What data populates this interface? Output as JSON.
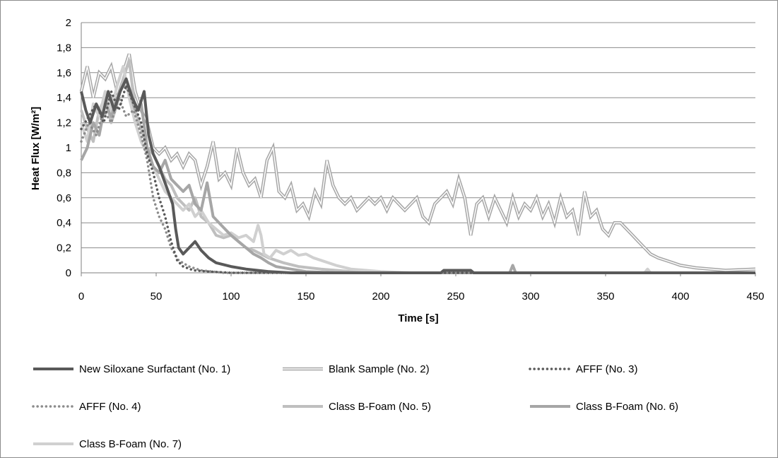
{
  "chart_data": {
    "type": "line",
    "title": "",
    "xlabel": "Time [s]",
    "ylabel": "Heat Flux [W/m²]",
    "xlim": [
      0,
      450
    ],
    "ylim": [
      0,
      2
    ],
    "x_ticks": [
      0,
      50,
      100,
      150,
      200,
      250,
      300,
      350,
      400,
      450
    ],
    "y_ticks": [
      0,
      0.2,
      0.4,
      0.6,
      0.8,
      1,
      1.2,
      1.4,
      1.6,
      1.8,
      2
    ],
    "y_tick_labels": [
      "0",
      "0,2",
      "0,4",
      "0,6",
      "0,8",
      "1",
      "1,2",
      "1,4",
      "1,6",
      "1,8",
      "2"
    ],
    "grid": "horizontal",
    "legend_position": "bottom",
    "series": [
      {
        "name": "New Siloxane Surfactant (No. 1)",
        "style": "solid-thick",
        "color": "#595959",
        "points": [
          [
            0,
            1.45
          ],
          [
            3,
            1.3
          ],
          [
            6,
            1.2
          ],
          [
            10,
            1.35
          ],
          [
            14,
            1.25
          ],
          [
            18,
            1.45
          ],
          [
            22,
            1.3
          ],
          [
            26,
            1.45
          ],
          [
            30,
            1.55
          ],
          [
            34,
            1.4
          ],
          [
            38,
            1.3
          ],
          [
            42,
            1.45
          ],
          [
            45,
            1.1
          ],
          [
            48,
            0.95
          ],
          [
            52,
            0.85
          ],
          [
            55,
            0.75
          ],
          [
            58,
            0.65
          ],
          [
            61,
            0.55
          ],
          [
            63,
            0.35
          ],
          [
            65,
            0.2
          ],
          [
            68,
            0.15
          ],
          [
            72,
            0.2
          ],
          [
            76,
            0.25
          ],
          [
            80,
            0.18
          ],
          [
            85,
            0.12
          ],
          [
            90,
            0.08
          ],
          [
            100,
            0.05
          ],
          [
            110,
            0.03
          ],
          [
            125,
            0.01
          ],
          [
            140,
            0.0
          ],
          [
            240,
            0.0
          ],
          [
            242,
            0.02
          ],
          [
            260,
            0.02
          ],
          [
            262,
            0.0
          ],
          [
            450,
            0.0
          ]
        ]
      },
      {
        "name": "Blank Sample (No. 2)",
        "style": "double",
        "color": "#a6a6a6",
        "points": [
          [
            0,
            1.45
          ],
          [
            4,
            1.65
          ],
          [
            8,
            1.4
          ],
          [
            12,
            1.6
          ],
          [
            16,
            1.55
          ],
          [
            20,
            1.65
          ],
          [
            24,
            1.45
          ],
          [
            28,
            1.6
          ],
          [
            32,
            1.75
          ],
          [
            36,
            1.45
          ],
          [
            40,
            1.3
          ],
          [
            44,
            1.2
          ],
          [
            48,
            1.0
          ],
          [
            52,
            0.95
          ],
          [
            56,
            1.0
          ],
          [
            60,
            0.9
          ],
          [
            64,
            0.95
          ],
          [
            68,
            0.85
          ],
          [
            72,
            0.95
          ],
          [
            76,
            0.9
          ],
          [
            80,
            0.7
          ],
          [
            84,
            0.85
          ],
          [
            88,
            1.05
          ],
          [
            92,
            0.75
          ],
          [
            96,
            0.8
          ],
          [
            100,
            0.7
          ],
          [
            104,
            1.0
          ],
          [
            108,
            0.8
          ],
          [
            112,
            0.7
          ],
          [
            116,
            0.75
          ],
          [
            120,
            0.6
          ],
          [
            124,
            0.9
          ],
          [
            128,
            1.0
          ],
          [
            132,
            0.65
          ],
          [
            136,
            0.6
          ],
          [
            140,
            0.7
          ],
          [
            144,
            0.5
          ],
          [
            148,
            0.55
          ],
          [
            152,
            0.45
          ],
          [
            156,
            0.65
          ],
          [
            160,
            0.55
          ],
          [
            164,
            0.9
          ],
          [
            168,
            0.7
          ],
          [
            172,
            0.6
          ],
          [
            176,
            0.55
          ],
          [
            180,
            0.6
          ],
          [
            184,
            0.5
          ],
          [
            188,
            0.55
          ],
          [
            192,
            0.6
          ],
          [
            196,
            0.55
          ],
          [
            200,
            0.6
          ],
          [
            204,
            0.5
          ],
          [
            208,
            0.6
          ],
          [
            212,
            0.55
          ],
          [
            216,
            0.5
          ],
          [
            220,
            0.55
          ],
          [
            224,
            0.6
          ],
          [
            228,
            0.45
          ],
          [
            232,
            0.4
          ],
          [
            236,
            0.55
          ],
          [
            240,
            0.6
          ],
          [
            244,
            0.65
          ],
          [
            248,
            0.55
          ],
          [
            252,
            0.75
          ],
          [
            256,
            0.6
          ],
          [
            260,
            0.3
          ],
          [
            264,
            0.55
          ],
          [
            268,
            0.6
          ],
          [
            272,
            0.45
          ],
          [
            276,
            0.6
          ],
          [
            280,
            0.5
          ],
          [
            284,
            0.4
          ],
          [
            288,
            0.6
          ],
          [
            292,
            0.45
          ],
          [
            296,
            0.55
          ],
          [
            300,
            0.5
          ],
          [
            304,
            0.6
          ],
          [
            308,
            0.45
          ],
          [
            312,
            0.55
          ],
          [
            316,
            0.4
          ],
          [
            320,
            0.6
          ],
          [
            324,
            0.45
          ],
          [
            328,
            0.5
          ],
          [
            332,
            0.3
          ],
          [
            336,
            0.65
          ],
          [
            340,
            0.45
          ],
          [
            344,
            0.5
          ],
          [
            348,
            0.35
          ],
          [
            352,
            0.3
          ],
          [
            356,
            0.4
          ],
          [
            360,
            0.4
          ],
          [
            364,
            0.35
          ],
          [
            368,
            0.3
          ],
          [
            372,
            0.25
          ],
          [
            376,
            0.2
          ],
          [
            380,
            0.15
          ],
          [
            385,
            0.12
          ],
          [
            390,
            0.1
          ],
          [
            395,
            0.08
          ],
          [
            400,
            0.06
          ],
          [
            410,
            0.04
          ],
          [
            420,
            0.03
          ],
          [
            430,
            0.02
          ],
          [
            450,
            0.03
          ]
        ]
      },
      {
        "name": "AFFF (No. 3)",
        "style": "dotted",
        "color": "#595959",
        "points": [
          [
            0,
            1.15
          ],
          [
            5,
            1.25
          ],
          [
            10,
            1.35
          ],
          [
            15,
            1.2
          ],
          [
            20,
            1.45
          ],
          [
            25,
            1.3
          ],
          [
            30,
            1.5
          ],
          [
            35,
            1.35
          ],
          [
            40,
            1.2
          ],
          [
            44,
            0.95
          ],
          [
            48,
            0.8
          ],
          [
            52,
            0.6
          ],
          [
            56,
            0.45
          ],
          [
            60,
            0.25
          ],
          [
            64,
            0.1
          ],
          [
            68,
            0.05
          ],
          [
            75,
            0.02
          ],
          [
            85,
            0.01
          ],
          [
            100,
            0.0
          ],
          [
            450,
            0.0
          ]
        ]
      },
      {
        "name": "AFFF (No. 4)",
        "style": "dotted",
        "color": "#8c8c8c",
        "points": [
          [
            0,
            1.05
          ],
          [
            5,
            1.2
          ],
          [
            10,
            1.1
          ],
          [
            15,
            1.3
          ],
          [
            20,
            1.2
          ],
          [
            25,
            1.4
          ],
          [
            30,
            1.25
          ],
          [
            35,
            1.3
          ],
          [
            40,
            1.1
          ],
          [
            44,
            0.9
          ],
          [
            48,
            0.6
          ],
          [
            52,
            0.45
          ],
          [
            56,
            0.35
          ],
          [
            60,
            0.2
          ],
          [
            65,
            0.1
          ],
          [
            72,
            0.05
          ],
          [
            80,
            0.02
          ],
          [
            95,
            0.0
          ],
          [
            450,
            0.0
          ]
        ]
      },
      {
        "name": "Class B-Foam (No. 5)",
        "style": "solid-thick",
        "color": "#bfbfbf",
        "points": [
          [
            0,
            1.3
          ],
          [
            4,
            1.15
          ],
          [
            8,
            1.05
          ],
          [
            12,
            1.3
          ],
          [
            16,
            1.4
          ],
          [
            20,
            1.2
          ],
          [
            24,
            1.35
          ],
          [
            28,
            1.55
          ],
          [
            32,
            1.7
          ],
          [
            36,
            1.3
          ],
          [
            40,
            1.15
          ],
          [
            44,
            1.0
          ],
          [
            48,
            0.95
          ],
          [
            52,
            0.85
          ],
          [
            56,
            0.75
          ],
          [
            60,
            0.7
          ],
          [
            64,
            0.6
          ],
          [
            68,
            0.55
          ],
          [
            72,
            0.5
          ],
          [
            76,
            0.6
          ],
          [
            80,
            0.45
          ],
          [
            85,
            0.4
          ],
          [
            90,
            0.3
          ],
          [
            95,
            0.28
          ],
          [
            100,
            0.3
          ],
          [
            105,
            0.25
          ],
          [
            110,
            0.2
          ],
          [
            115,
            0.18
          ],
          [
            120,
            0.15
          ],
          [
            125,
            0.12
          ],
          [
            130,
            0.1
          ],
          [
            135,
            0.08
          ],
          [
            145,
            0.05
          ],
          [
            160,
            0.03
          ],
          [
            180,
            0.01
          ],
          [
            200,
            0.0
          ],
          [
            450,
            0.0
          ]
        ]
      },
      {
        "name": "Class B-Foam (No. 6)",
        "style": "solid-thick",
        "color": "#a6a6a6",
        "points": [
          [
            0,
            0.9
          ],
          [
            4,
            1.0
          ],
          [
            8,
            1.2
          ],
          [
            12,
            1.1
          ],
          [
            16,
            1.35
          ],
          [
            20,
            1.25
          ],
          [
            24,
            1.4
          ],
          [
            28,
            1.5
          ],
          [
            32,
            1.45
          ],
          [
            36,
            1.3
          ],
          [
            40,
            1.35
          ],
          [
            44,
            1.0
          ],
          [
            48,
            0.85
          ],
          [
            52,
            0.8
          ],
          [
            56,
            0.9
          ],
          [
            60,
            0.75
          ],
          [
            64,
            0.7
          ],
          [
            68,
            0.65
          ],
          [
            72,
            0.7
          ],
          [
            76,
            0.55
          ],
          [
            80,
            0.5
          ],
          [
            84,
            0.72
          ],
          [
            88,
            0.45
          ],
          [
            92,
            0.4
          ],
          [
            96,
            0.35
          ],
          [
            100,
            0.3
          ],
          [
            105,
            0.25
          ],
          [
            110,
            0.2
          ],
          [
            115,
            0.15
          ],
          [
            120,
            0.12
          ],
          [
            125,
            0.08
          ],
          [
            130,
            0.05
          ],
          [
            140,
            0.03
          ],
          [
            150,
            0.01
          ],
          [
            170,
            0.0
          ],
          [
            286,
            0.0
          ],
          [
            288,
            0.06
          ],
          [
            290,
            0.0
          ],
          [
            450,
            0.0
          ]
        ]
      },
      {
        "name": "Class B-Foam (No. 7)",
        "style": "solid-thick",
        "color": "#d0d0d0",
        "points": [
          [
            0,
            1.2
          ],
          [
            4,
            1.05
          ],
          [
            8,
            1.35
          ],
          [
            12,
            1.25
          ],
          [
            16,
            1.45
          ],
          [
            20,
            1.3
          ],
          [
            24,
            1.5
          ],
          [
            28,
            1.65
          ],
          [
            32,
            1.4
          ],
          [
            36,
            1.2
          ],
          [
            40,
            1.05
          ],
          [
            44,
            0.95
          ],
          [
            48,
            0.85
          ],
          [
            52,
            0.75
          ],
          [
            56,
            0.65
          ],
          [
            60,
            0.6
          ],
          [
            64,
            0.55
          ],
          [
            68,
            0.5
          ],
          [
            72,
            0.55
          ],
          [
            76,
            0.45
          ],
          [
            80,
            0.5
          ],
          [
            85,
            0.4
          ],
          [
            90,
            0.35
          ],
          [
            95,
            0.3
          ],
          [
            100,
            0.32
          ],
          [
            105,
            0.28
          ],
          [
            110,
            0.3
          ],
          [
            115,
            0.25
          ],
          [
            118,
            0.38
          ],
          [
            120,
            0.3
          ],
          [
            122,
            0.15
          ],
          [
            126,
            0.12
          ],
          [
            130,
            0.18
          ],
          [
            135,
            0.15
          ],
          [
            140,
            0.18
          ],
          [
            145,
            0.14
          ],
          [
            150,
            0.15
          ],
          [
            155,
            0.12
          ],
          [
            160,
            0.1
          ],
          [
            170,
            0.06
          ],
          [
            180,
            0.03
          ],
          [
            200,
            0.01
          ],
          [
            220,
            0.0
          ],
          [
            376,
            0.0
          ],
          [
            378,
            0.03
          ],
          [
            380,
            0.0
          ],
          [
            450,
            0.0
          ]
        ]
      }
    ]
  }
}
